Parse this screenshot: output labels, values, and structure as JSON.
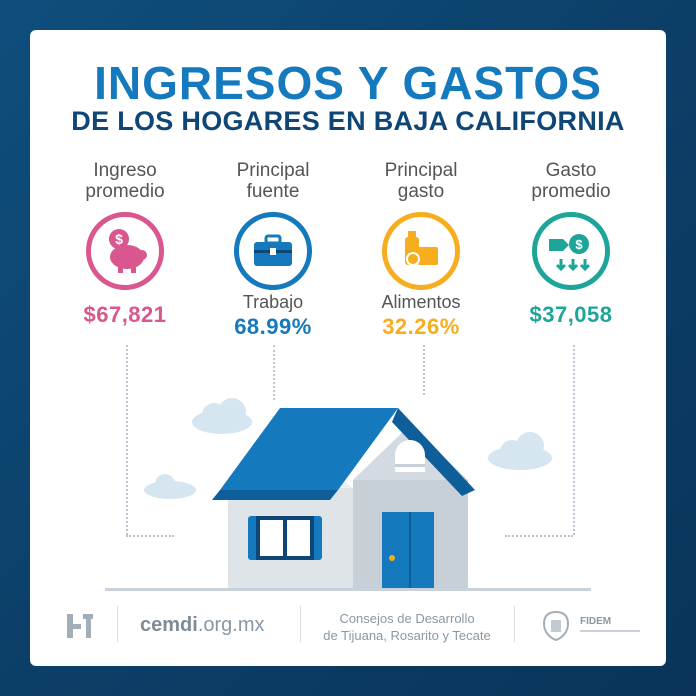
{
  "title": {
    "line1": "INGRESOS Y GASTOS",
    "line2": "DE LOS HOGARES EN BAJA CALIFORNIA"
  },
  "stats": [
    {
      "label_line1": "Ingreso",
      "label_line2": "promedio",
      "sub": "",
      "value": "$67,821",
      "color": "#d9568e",
      "icon": "piggy-bank-icon"
    },
    {
      "label_line1": "Principal",
      "label_line2": "fuente",
      "sub": "Trabajo",
      "value": "68.99%",
      "color": "#1479bd",
      "icon": "briefcase-icon"
    },
    {
      "label_line1": "Principal",
      "label_line2": "gasto",
      "sub": "Alimentos",
      "value": "32.26%",
      "color": "#f6ae1e",
      "icon": "groceries-icon"
    },
    {
      "label_line1": "Gasto",
      "label_line2": "promedio",
      "sub": "",
      "value": "$37,058",
      "color": "#1ea59a",
      "icon": "money-spending-icon"
    }
  ],
  "footer": {
    "website_bold": "cemdi",
    "website_rest": ".org.mx",
    "org_line1": "Consejos de Desarrollo",
    "org_line2": "de Tijuana, Rosarito y Tecate",
    "fidem": "FIDEM"
  }
}
